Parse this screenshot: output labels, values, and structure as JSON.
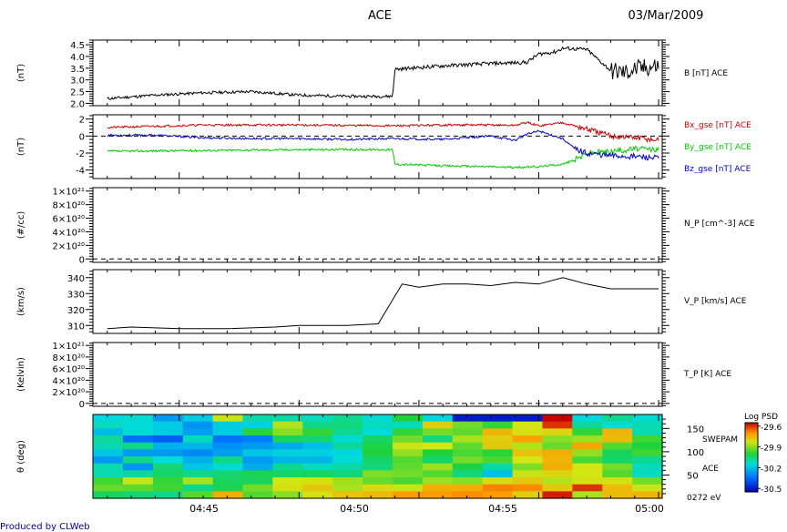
{
  "header": {
    "title": "ACE",
    "date": "03/Mar/2009"
  },
  "footer": {
    "credit": "Produced by CLWeb"
  },
  "colors": {
    "black": "#000000",
    "red": "#cc0000",
    "green": "#00cc00",
    "blue": "#0000cc",
    "credit": "#0000aa"
  },
  "x_axis": {
    "tick_labels": [
      "04:45",
      "04:50",
      "04:55",
      "05:00"
    ]
  },
  "chart_data": [
    {
      "type": "line",
      "panel": "B",
      "ylabel": "(nT)",
      "yticks": [
        "2.0",
        "2.5",
        "3.0",
        "3.5",
        "4.0",
        "4.5"
      ],
      "ylim": [
        1.9,
        4.7
      ],
      "series": [
        {
          "name": "B [nT] ACE",
          "x": [
            0,
            2,
            4,
            6,
            8,
            10,
            11.9,
            12,
            14,
            16,
            17.5,
            18,
            18.7,
            19,
            20,
            21,
            21.6,
            22,
            23
          ],
          "y": [
            2.2,
            2.35,
            2.45,
            2.5,
            2.35,
            2.3,
            2.3,
            3.45,
            3.6,
            3.7,
            3.75,
            4.1,
            4.2,
            4.35,
            4.3,
            3.4,
            3.3,
            3.45,
            3.6
          ]
        }
      ]
    },
    {
      "type": "line",
      "panel": "Bgse",
      "ylabel": "(nT)",
      "yticks": [
        "-4",
        "-2",
        "0",
        "2"
      ],
      "ylim": [
        -5,
        2.5
      ],
      "series": [
        {
          "name": "Bx_gse [nT] ACE",
          "x": [
            0,
            4,
            8,
            12,
            14,
            16,
            17,
            17.5,
            18,
            19,
            19.5,
            20,
            21,
            22,
            23
          ],
          "y": [
            1.0,
            1.3,
            1.3,
            1.2,
            1.3,
            1.3,
            1.25,
            1.6,
            1.2,
            1.6,
            1.2,
            0.8,
            0.0,
            -0.2,
            -0.5
          ],
          "color": "#cc0000"
        },
        {
          "name": "By_gse [nT] ACE",
          "x": [
            0,
            4,
            8,
            11.9,
            12,
            14,
            16,
            17,
            18,
            19,
            19.5,
            20,
            21,
            22,
            23
          ],
          "y": [
            -1.8,
            -1.7,
            -1.6,
            -1.6,
            -3.3,
            -3.5,
            -3.6,
            -3.7,
            -3.6,
            -3.3,
            -2.8,
            -2.0,
            -1.8,
            -1.5,
            -1.6
          ],
          "color": "#00cc00"
        },
        {
          "name": "Bz_gse [nT] ACE",
          "x": [
            0,
            2,
            4,
            6,
            8,
            10,
            12,
            14,
            16,
            17,
            17.5,
            18,
            19,
            19.5,
            20,
            21,
            22,
            23
          ],
          "y": [
            0.1,
            0.1,
            -0.2,
            -0.3,
            -0.3,
            -0.4,
            -0.3,
            -0.4,
            0.0,
            -0.5,
            0.2,
            0.6,
            -0.3,
            -1.5,
            -2.0,
            -2.3,
            -2.4,
            -2.6
          ],
          "color": "#0000cc"
        }
      ],
      "reference_line": 0
    },
    {
      "type": "line",
      "panel": "N_P",
      "ylabel": "(#/cc)",
      "ytick_labels": [
        "0",
        "2×10²⁰",
        "4×10²⁰",
        "6×10²⁰",
        "8×10²⁰",
        "1×10²¹"
      ],
      "yticks": [
        0,
        2e+20,
        4e+20,
        6e+20,
        8e+20,
        1e+21
      ],
      "ylim": [
        -5e+19,
        1.05e+21
      ],
      "series": [
        {
          "name": "N_P [cm^-3] ACE",
          "x": [
            0,
            23
          ],
          "y": [
            0,
            0
          ]
        }
      ]
    },
    {
      "type": "line",
      "panel": "V_P",
      "ylabel": "(km/s)",
      "yticks": [
        310,
        320,
        330,
        340
      ],
      "ylim": [
        305,
        345
      ],
      "series": [
        {
          "name": "V_P [km/s] ACE",
          "x": [
            0,
            1,
            3,
            5,
            7,
            8,
            10,
            11.3,
            12.3,
            13,
            14,
            15,
            16,
            17,
            18,
            19,
            20,
            21,
            22,
            23
          ],
          "y": [
            308,
            309,
            308,
            308,
            309,
            310,
            310,
            311,
            336,
            334,
            336,
            336,
            335,
            337,
            336,
            340,
            336,
            333,
            333,
            333
          ]
        }
      ]
    },
    {
      "type": "line",
      "panel": "T_P",
      "ylabel": "(Kelvin)",
      "ytick_labels": [
        "0",
        "2×10²⁰",
        "4×10²⁰",
        "6×10²⁰",
        "8×10²⁰",
        "1×10²¹"
      ],
      "yticks": [
        0,
        2e+20,
        4e+20,
        6e+20,
        8e+20,
        1e+21
      ],
      "ylim": [
        -5e+19,
        1.05e+21
      ],
      "series": [
        {
          "name": "T_P [K] ACE",
          "x": [
            0,
            23
          ],
          "y": [
            0,
            0
          ]
        }
      ]
    },
    {
      "type": "heatmap",
      "panel": "SWEPAM",
      "ylabel": "θ (deg)",
      "yticks": [
        50,
        100,
        150
      ],
      "ylim": [
        0,
        180
      ],
      "right_labels": [
        "SWEPAM",
        "ACE",
        "0272 eV"
      ],
      "colorbar": {
        "title": "Log PSD",
        "tick_labels": [
          "-29.6",
          "-29.9",
          "-30.2",
          "-30.5"
        ],
        "range": [
          -30.55,
          -29.55
        ]
      },
      "rows": 12,
      "columns": 19,
      "values": [
        [
          -30.16,
          -30.14,
          -30.27,
          -30.18,
          -29.84,
          -30.1,
          -30.1,
          -30.12,
          -30.08,
          -30.14,
          -30.0,
          -30.16,
          -30.5,
          -30.5,
          -30.5,
          -29.5,
          -30.16,
          -30.08,
          -30.14
        ],
        [
          -30.12,
          -30.15,
          -30.18,
          -30.28,
          -30.18,
          -30.17,
          -29.86,
          -30.07,
          -30.06,
          -30.12,
          -30.12,
          -29.79,
          -29.92,
          -29.98,
          -29.83,
          -29.6,
          -30.09,
          -30.14,
          -30.11
        ],
        [
          -30.21,
          -30.14,
          -30.18,
          -30.26,
          -30.18,
          -29.99,
          -29.9,
          -29.98,
          -30.08,
          -30.15,
          -29.98,
          -29.92,
          -29.94,
          -29.75,
          -29.82,
          -29.8,
          -29.98,
          -29.75,
          -30.11
        ],
        [
          -30.09,
          -30.35,
          -30.38,
          -30.12,
          -30.34,
          -30.32,
          -30.03,
          -30.05,
          -30.14,
          -30.04,
          -29.92,
          -30.06,
          -29.87,
          -29.79,
          -29.72,
          -29.9,
          -29.88,
          -29.76,
          -29.97
        ],
        [
          -30.11,
          -30.07,
          -30.23,
          -30.22,
          -30.29,
          -30.27,
          -30.24,
          -30.2,
          -30.09,
          -30.01,
          -29.84,
          -29.83,
          -29.94,
          -29.78,
          -29.86,
          -29.93,
          -29.73,
          -29.95,
          -30.0
        ],
        [
          -30.19,
          -30.27,
          -30.27,
          -30.3,
          -30.26,
          -30.19,
          -30.17,
          -30.17,
          -30.16,
          -30.0,
          -29.89,
          -30.0,
          -29.96,
          -29.99,
          -29.77,
          -29.74,
          -29.89,
          -30.03,
          -29.97
        ],
        [
          -30.27,
          -30.07,
          -30.15,
          -30.23,
          -30.07,
          -30.27,
          -30.22,
          -30.22,
          -30.14,
          -30.04,
          -29.95,
          -30.04,
          -29.92,
          -29.96,
          -29.83,
          -29.75,
          -29.96,
          -30.04,
          -30.08
        ],
        [
          -30.11,
          -30.28,
          -30.05,
          -30.19,
          -30.14,
          -30.24,
          -30.08,
          -30.12,
          -30.1,
          -30.06,
          -29.94,
          -29.88,
          -30.01,
          -30.1,
          -29.91,
          -29.74,
          -29.83,
          -29.92,
          -30.12
        ],
        [
          -30.11,
          -30.09,
          -30.04,
          -30.07,
          -30.05,
          -30.02,
          -30.04,
          -30.03,
          -30.06,
          -29.91,
          -29.92,
          -29.95,
          -30.06,
          -30.2,
          -29.84,
          -29.8,
          -29.83,
          -29.95,
          -30.12
        ],
        [
          -29.97,
          -29.84,
          -29.98,
          -29.87,
          -30.03,
          -30.03,
          -29.83,
          -29.82,
          -29.88,
          -29.93,
          -29.96,
          -29.88,
          -29.9,
          -29.81,
          -29.78,
          -29.86,
          -29.82,
          -29.82,
          -29.92
        ],
        [
          -29.93,
          -29.94,
          -29.97,
          -30.07,
          -30.02,
          -29.92,
          -29.82,
          -29.78,
          -29.87,
          -29.81,
          -29.84,
          -29.74,
          -29.74,
          -29.68,
          -29.69,
          -29.78,
          -29.6,
          -29.76,
          -29.84
        ],
        [
          -30.03,
          -30.05,
          -30.07,
          -29.95,
          -29.74,
          -29.95,
          -29.9,
          -29.82,
          -29.77,
          -29.76,
          -29.71,
          -29.71,
          -29.69,
          -29.71,
          -29.79,
          -29.58,
          -29.87,
          -29.76,
          -29.75
        ]
      ]
    }
  ]
}
